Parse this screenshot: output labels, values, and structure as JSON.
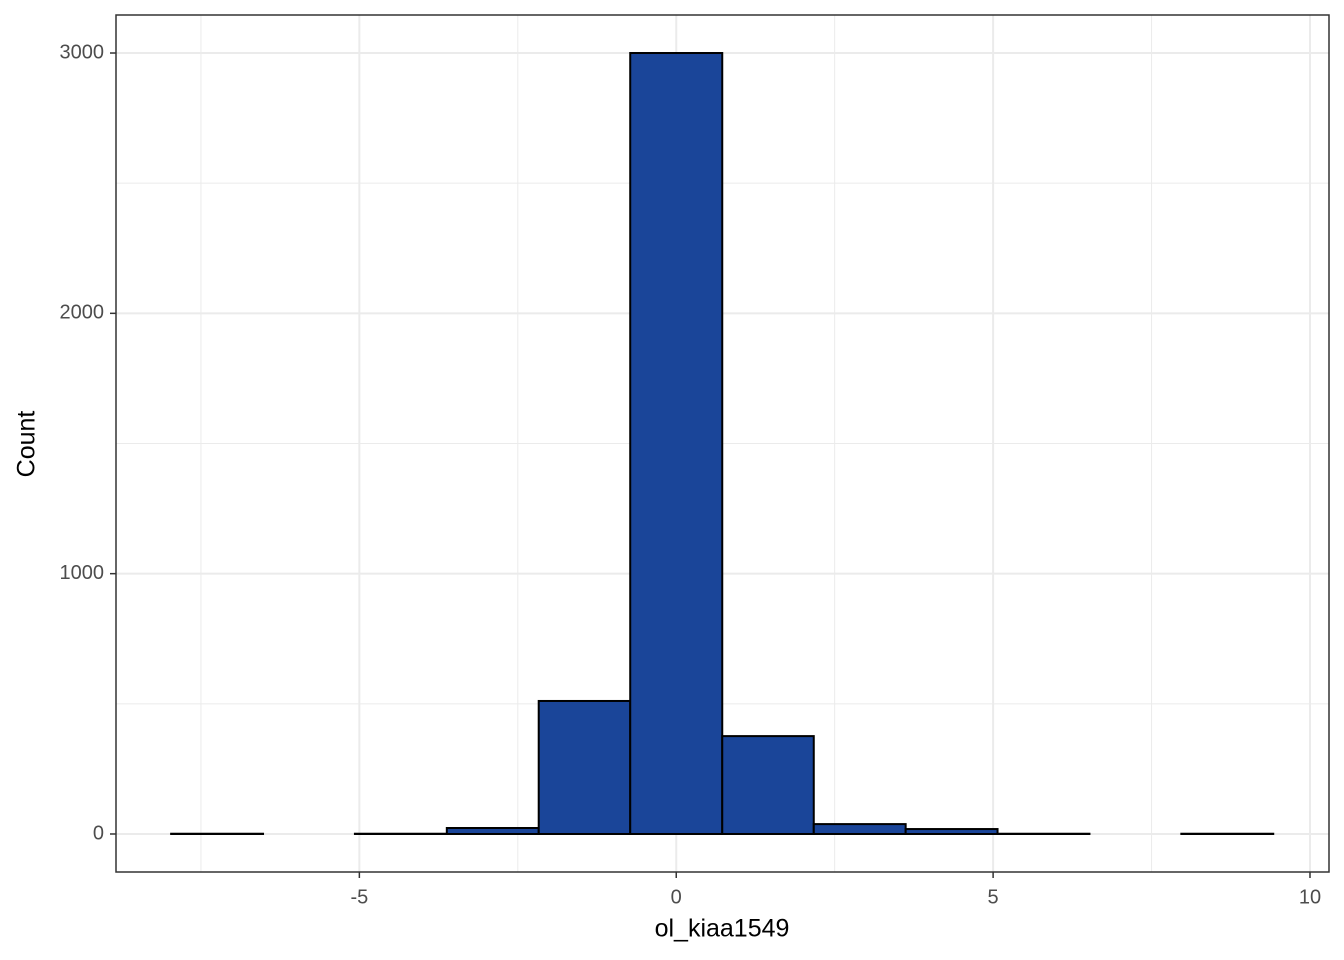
{
  "chart_data": {
    "type": "histogram",
    "x_label": "ol_kiaa1549",
    "y_label": "Count",
    "bins": [
      -7.97,
      -6.52,
      -5.07,
      -3.62,
      -2.17,
      -0.726,
      0.726,
      2.17,
      3.62,
      5.07,
      6.52,
      7.97,
      9.42
    ],
    "values": [
      1,
      0,
      1,
      23,
      511,
      3000,
      376,
      38,
      19,
      1,
      0,
      1
    ],
    "color": "#1a4599",
    "edgecolor": "#000000",
    "xlim": [
      -8.84,
      10.3
    ],
    "ylim": [
      -146,
      3146
    ],
    "xticks": [
      -5,
      0,
      5,
      10
    ],
    "yticks": [
      0,
      1000,
      2000,
      3000
    ],
    "x_minor_grid": [
      -7.5,
      -2.5,
      2.5,
      7.5
    ],
    "y_minor_grid": [
      500,
      1500,
      2500
    ],
    "grid": true
  }
}
